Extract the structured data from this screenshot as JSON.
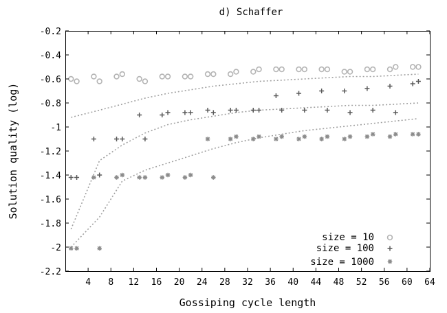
{
  "chart_data": {
    "type": "scatter",
    "title": "d) Schaffer",
    "xlabel": "Gossiping cycle length",
    "ylabel": "Solution quality (log)",
    "xlim": [
      0,
      64
    ],
    "ylim": [
      -2.2,
      -0.2
    ],
    "xticks": [
      "4",
      "8",
      "12",
      "16",
      "20",
      "24",
      "28",
      "32",
      "36",
      "40",
      "44",
      "48",
      "52",
      "56",
      "60",
      "64"
    ],
    "yticks": [
      "-0.2",
      "-0.4",
      "-0.6",
      "-0.8",
      "-1",
      "-1.2",
      "-1.4",
      "-1.6",
      "-1.8",
      "-2",
      "-2.2"
    ],
    "legend_position": "bottom-right",
    "grid": false,
    "colors": {
      "size10": "#b4b4b4",
      "size100": "#5a5a5a",
      "size1000": "#8c8c8c",
      "trend": "#a0a0a0"
    },
    "series": [
      {
        "name": "size = 10",
        "marker": "circle",
        "x": [
          1,
          2,
          5,
          6,
          9,
          10,
          13,
          14,
          17,
          18,
          21,
          22,
          25,
          26,
          29,
          30,
          33,
          34,
          37,
          38,
          41,
          42,
          45,
          46,
          49,
          50,
          53,
          54,
          57,
          58,
          61,
          62
        ],
        "y": [
          -0.6,
          -0.62,
          -0.58,
          -0.62,
          -0.58,
          -0.56,
          -0.6,
          -0.62,
          -0.58,
          -0.58,
          -0.58,
          -0.58,
          -0.56,
          -0.56,
          -0.56,
          -0.54,
          -0.54,
          -0.52,
          -0.52,
          -0.52,
          -0.52,
          -0.52,
          -0.52,
          -0.52,
          -0.54,
          -0.54,
          -0.52,
          -0.52,
          -0.52,
          -0.5,
          -0.5,
          -0.5
        ],
        "trend_x": [
          1,
          6,
          10,
          14,
          18,
          22,
          26,
          30,
          34,
          38,
          42,
          46,
          50,
          54,
          58,
          62
        ],
        "trend_y": [
          -0.92,
          -0.86,
          -0.81,
          -0.76,
          -0.72,
          -0.69,
          -0.66,
          -0.64,
          -0.62,
          -0.61,
          -0.6,
          -0.59,
          -0.58,
          -0.58,
          -0.57,
          -0.56
        ]
      },
      {
        "name": "size = 100",
        "marker": "plus",
        "x": [
          1,
          2,
          5,
          6,
          9,
          10,
          13,
          14,
          17,
          18,
          21,
          22,
          25,
          26,
          29,
          30,
          33,
          34,
          37,
          38,
          41,
          42,
          45,
          46,
          49,
          50,
          53,
          54,
          57,
          58,
          61,
          62
        ],
        "y": [
          -1.42,
          -1.42,
          -1.1,
          -1.4,
          -1.1,
          -1.1,
          -0.9,
          -1.1,
          -0.9,
          -0.88,
          -0.88,
          -0.88,
          -0.86,
          -0.88,
          -0.86,
          -0.86,
          -0.86,
          -0.86,
          -0.74,
          -0.86,
          -0.72,
          -0.86,
          -0.7,
          -0.86,
          -0.7,
          -0.88,
          -0.68,
          -0.86,
          -0.66,
          -0.88,
          -0.64,
          -0.62
        ],
        "trend_x": [
          1,
          6,
          10,
          14,
          18,
          22,
          26,
          30,
          34,
          38,
          42,
          46,
          50,
          54,
          58,
          62
        ],
        "trend_y": [
          -1.85,
          -1.28,
          -1.15,
          -1.05,
          -0.98,
          -0.94,
          -0.91,
          -0.88,
          -0.86,
          -0.85,
          -0.84,
          -0.83,
          -0.82,
          -0.82,
          -0.81,
          -0.8
        ]
      },
      {
        "name": "size = 1000",
        "marker": "asterisk",
        "x": [
          1,
          2,
          5,
          6,
          9,
          10,
          13,
          14,
          17,
          18,
          21,
          22,
          25,
          26,
          29,
          30,
          33,
          34,
          37,
          38,
          41,
          42,
          45,
          46,
          49,
          50,
          53,
          54,
          57,
          58,
          61,
          62
        ],
        "y": [
          -2.01,
          -2.01,
          -1.42,
          -2.01,
          -1.42,
          -1.4,
          -1.42,
          -1.42,
          -1.42,
          -1.4,
          -1.42,
          -1.4,
          -1.1,
          -1.42,
          -1.1,
          -1.08,
          -1.1,
          -1.08,
          -1.1,
          -1.08,
          -1.1,
          -1.08,
          -1.1,
          -1.08,
          -1.1,
          -1.08,
          -1.08,
          -1.06,
          -1.08,
          -1.06,
          -1.06,
          -1.06
        ],
        "trend_x": [
          1,
          6,
          10,
          14,
          18,
          22,
          26,
          30,
          34,
          38,
          42,
          46,
          50,
          54,
          58,
          62
        ],
        "trend_y": [
          -2.0,
          -1.75,
          -1.45,
          -1.36,
          -1.3,
          -1.24,
          -1.18,
          -1.13,
          -1.09,
          -1.06,
          -1.03,
          -1.01,
          -0.99,
          -0.97,
          -0.95,
          -0.93
        ]
      }
    ]
  }
}
